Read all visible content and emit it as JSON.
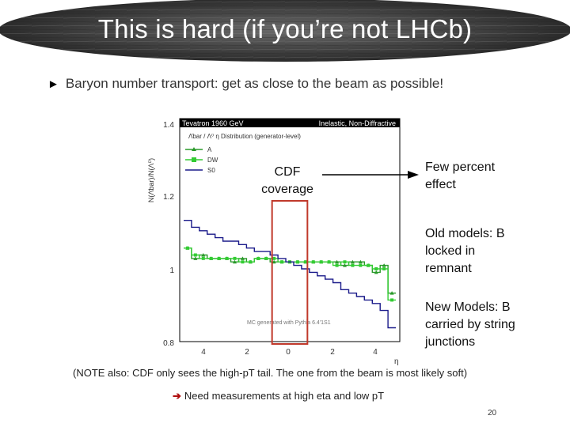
{
  "title": "This is hard (if you’re not LHCb)",
  "subtitle": "Baryon number transport: get as close to the beam as possible!",
  "plot": {
    "header_left": "Tevatron 1960 GeV",
    "header_right": "Inelastic, Non-Diffractive",
    "inner_title": "Λ̄bar / Λ⁰ η Distribution (generator-level)",
    "y_axis_label": "N(Λ̄bar)/N(Λ⁰)",
    "x_axis_label": "η",
    "legend": [
      "A",
      "DW",
      "S0"
    ],
    "watermark": "MC generated with Pythia 6.4'1S1",
    "y_ticks": [
      "1.4",
      "1.2",
      "1",
      "0.8"
    ],
    "x_ticks": [
      "4",
      "2",
      "0",
      "2",
      "4"
    ]
  },
  "chart_data": {
    "type": "line",
    "x": [
      -5.2,
      -4.8,
      -4.4,
      -4.0,
      -3.6,
      -3.2,
      -2.8,
      -2.4,
      -2.0,
      -1.6,
      -1.2,
      -0.8,
      -0.4,
      0.0,
      0.4,
      0.8,
      1.2,
      1.6,
      2.0,
      2.4,
      2.8,
      3.2,
      3.6,
      4.0,
      4.4,
      4.8,
      5.2
    ],
    "series": [
      {
        "name": "A",
        "values": [
          1.05,
          1.02,
          1.03,
          1.02,
          1.02,
          1.02,
          1.01,
          1.02,
          1.01,
          1.02,
          1.02,
          1.01,
          1.01,
          1.01,
          1.01,
          1.01,
          1.01,
          1.01,
          1.01,
          1.01,
          1.0,
          1.01,
          1.01,
          1.0,
          0.98,
          1.0,
          0.92
        ]
      },
      {
        "name": "DW",
        "values": [
          1.05,
          1.03,
          1.02,
          1.02,
          1.02,
          1.02,
          1.02,
          1.01,
          1.01,
          1.02,
          1.02,
          1.02,
          1.01,
          1.01,
          1.01,
          1.01,
          1.01,
          1.01,
          1.01,
          1.0,
          1.01,
          1.0,
          1.0,
          1.0,
          0.99,
          0.99,
          0.9
        ]
      },
      {
        "name": "S0",
        "values": [
          1.13,
          1.11,
          1.1,
          1.09,
          1.08,
          1.07,
          1.07,
          1.06,
          1.05,
          1.04,
          1.04,
          1.03,
          1.02,
          1.01,
          1.0,
          0.99,
          0.98,
          0.97,
          0.96,
          0.95,
          0.93,
          0.92,
          0.91,
          0.9,
          0.89,
          0.87,
          0.82
        ]
      }
    ],
    "ylim": [
      0.78,
      1.41
    ],
    "xlim": [
      -5.6,
      5.6
    ],
    "xlabel": "η",
    "ylabel": "N(Λ̄bar)/N(Λ⁰)",
    "legend_placement": "top-left",
    "highlight_box": {
      "x_range": [
        -0.9,
        0.9
      ],
      "color": "#c0392b"
    }
  },
  "annotations": {
    "cdf_coverage": "CDF coverage",
    "few_percent": "Few percent effect",
    "old_models": "Old models: B locked in remnant",
    "new_models": "New Models: B carried by string junctions"
  },
  "note": "(NOTE also: CDF only sees the high-pT tail. The one from the beam is most likely soft)",
  "need": "Need measurements at high eta and low pT",
  "page_number": "20",
  "colors": {
    "series_A": "#2a9a2a",
    "series_DW": "#33cc33",
    "series_S0": "#1a1a8a",
    "highlight": "#c0392b"
  }
}
